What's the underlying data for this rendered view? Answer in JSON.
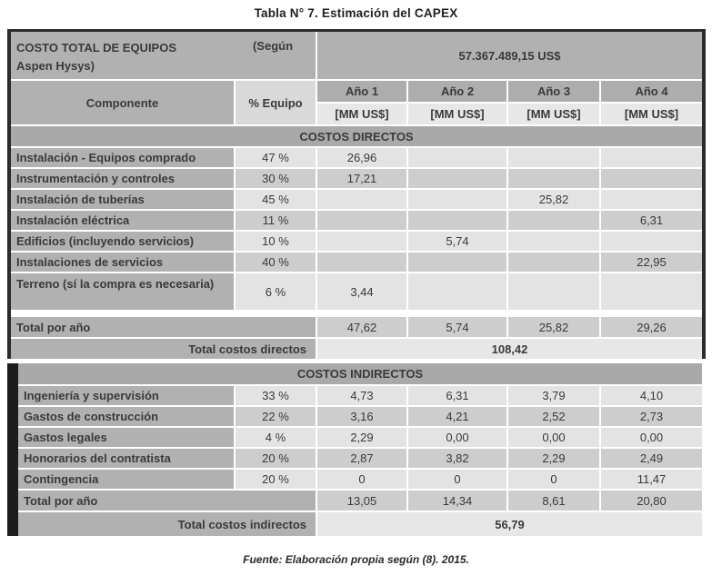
{
  "title": "Tabla N° 7. Estimación del CAPEX",
  "footer": "Fuente: Elaboración propia según (8). 2015.",
  "header": {
    "equip_label_line1": "COSTO TOTAL DE EQUIPOS",
    "equip_label_line2": "Aspen Hysys)",
    "segun": "(Según",
    "total_amount": "57.367.489,15 US$",
    "componente": "Componente",
    "pct_equipo": "% Equipo",
    "years": [
      "Año 1",
      "Año 2",
      "Año 3",
      "Año 4"
    ],
    "unit": "[MM US$]"
  },
  "direct": {
    "section_title": "COSTOS DIRECTOS",
    "rows": [
      {
        "label": "Instalación - Equipos comprado",
        "pct": "47 %",
        "y1": "26,96",
        "y2": "",
        "y3": "",
        "y4": ""
      },
      {
        "label": "Instrumentación y controles",
        "pct": "30 %",
        "y1": "17,21",
        "y2": "",
        "y3": "",
        "y4": ""
      },
      {
        "label": "Instalación de tuberías",
        "pct": "45 %",
        "y1": "",
        "y2": "",
        "y3": "25,82",
        "y4": ""
      },
      {
        "label": "Instalación eléctrica",
        "pct": "11 %",
        "y1": "",
        "y2": "",
        "y3": "",
        "y4": "6,31"
      },
      {
        "label": "Edificios (incluyendo servicios)",
        "pct": "10 %",
        "y1": "",
        "y2": "5,74",
        "y3": "",
        "y4": ""
      },
      {
        "label": "Instalaciones de servicios",
        "pct": "40 %",
        "y1": "",
        "y2": "",
        "y3": "",
        "y4": "22,95"
      },
      {
        "label": "Terreno (sí la compra es necesaria)",
        "pct": "6 %",
        "y1": "3,44",
        "y2": "",
        "y3": "",
        "y4": ""
      }
    ],
    "total_label": "Total por año",
    "totals": [
      "47,62",
      "5,74",
      "25,82",
      "29,26"
    ],
    "grand_label": "Total costos directos",
    "grand_total": "108,42"
  },
  "indirect": {
    "section_title": "COSTOS INDIRECTOS",
    "rows": [
      {
        "label": "Ingeniería y supervisión",
        "pct": "33 %",
        "y1": "4,73",
        "y2": "6,31",
        "y3": "3,79",
        "y4": "4,10"
      },
      {
        "label": "Gastos de construcción",
        "pct": "22 %",
        "y1": "3,16",
        "y2": "4,21",
        "y3": "2,52",
        "y4": "2,73"
      },
      {
        "label": "Gastos legales",
        "pct": "4 %",
        "y1": "2,29",
        "y2": "0,00",
        "y3": "0,00",
        "y4": "0,00"
      },
      {
        "label": "Honorarios del contratista",
        "pct": "20 %",
        "y1": "2,87",
        "y2": "3,82",
        "y3": "2,29",
        "y4": "2,49"
      },
      {
        "label": "Contingencia",
        "pct": "20 %",
        "y1": "0",
        "y2": "0",
        "y3": "0",
        "y4": "11,47"
      }
    ],
    "total_label": "Total por año",
    "totals": [
      "13,05",
      "14,34",
      "8,61",
      "20,80"
    ],
    "grand_label": "Total costos indirectos",
    "grand_total": "56,79"
  },
  "colors": {
    "border": "#2b2b2b",
    "black": "#1d1d1d",
    "med": "#b1b1b1",
    "sec": "#a9a9a9",
    "yr": "#adadad",
    "mm": "#e7e7e7",
    "pcthdr": "#d9d9d9",
    "sa": "#e3e3e3",
    "sb": "#cdcdcd",
    "text": "#3a3a3a"
  }
}
